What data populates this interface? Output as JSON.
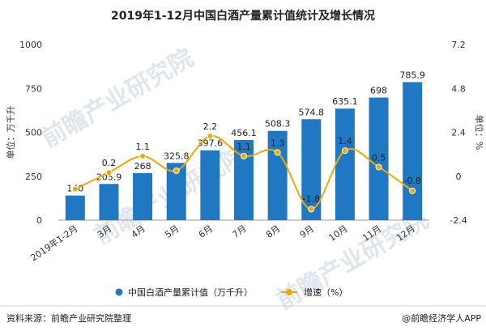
{
  "chart_data": {
    "type": "bar",
    "title": "2019年1-12月中国白酒产量累计值统计及增长情况",
    "categories": [
      "2019年1-2月",
      "3月",
      "4月",
      "5月",
      "6月",
      "7月",
      "8月",
      "9月",
      "10月",
      "11月",
      "12月"
    ],
    "series": [
      {
        "name": "中国白酒产量累计值（万千升）",
        "type": "bar",
        "axis": "left",
        "color": "#1f78c1",
        "values": [
          140,
          205.9,
          268,
          325.8,
          397.6,
          456.1,
          508.3,
          574.8,
          635.1,
          698,
          785.9
        ],
        "labels": [
          "140",
          "205.9",
          "268",
          "325.8",
          "397.6",
          "456.1",
          "508.3",
          "574.8",
          "635.1",
          "698",
          "785.9"
        ]
      },
      {
        "name": "增速（%）",
        "type": "line",
        "axis": "right",
        "color": "#f0a800",
        "values": [
          -0.7,
          0.2,
          1.1,
          0.3,
          2.2,
          1.1,
          1.3,
          -1.8,
          1.4,
          0.5,
          -0.8
        ],
        "labels": [
          "",
          "0.2",
          "1.1",
          "",
          "2.2",
          "1.1",
          "1.3",
          "-1.8",
          "1.4",
          "0.5",
          "-0.8"
        ]
      }
    ],
    "y_left": {
      "label": "单位：万千升",
      "ylim": [
        0,
        1000
      ],
      "ticks": [
        0,
        250,
        500,
        750,
        1000
      ]
    },
    "y_right": {
      "label": "单位：%",
      "ylim": [
        -2.4,
        7.2
      ],
      "ticks": [
        "-2.4",
        "0",
        "2.4",
        "4.8",
        "7.2"
      ]
    },
    "grid": false,
    "legend_position": "bottom"
  },
  "footer": {
    "source": "资料来源：前瞻产业研究院整理",
    "credit": "@前瞻经济学人APP"
  },
  "watermark": {
    "text": "前瞻产业研究院"
  }
}
